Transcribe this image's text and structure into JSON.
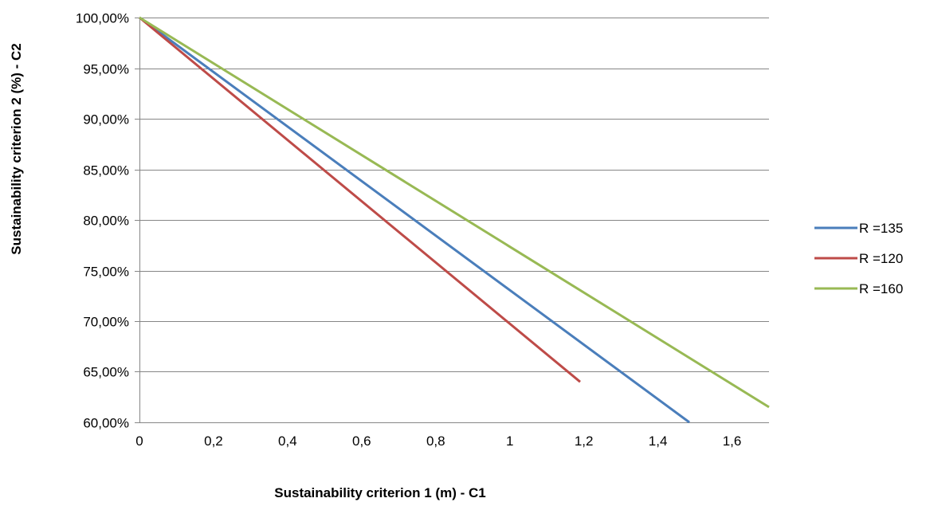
{
  "chart_data": {
    "type": "line",
    "xlabel": "Sustainability criterion 1 (m) - C1",
    "ylabel": "Sustainability criterion 2 (%) - C2",
    "xlim": [
      0,
      1.7
    ],
    "ylim": [
      0.6,
      1.0
    ],
    "x_ticks": [
      0,
      0.2,
      0.4,
      0.6,
      0.8,
      1,
      1.2,
      1.4,
      1.6
    ],
    "x_tick_labels": [
      "0",
      "0,2",
      "0,4",
      "0,6",
      "0,8",
      "1",
      "1,2",
      "1,4",
      "1,6"
    ],
    "y_ticks": [
      1.0,
      0.95,
      0.9,
      0.85,
      0.8,
      0.75,
      0.7,
      0.65,
      0.6
    ],
    "y_tick_labels": [
      "100,00%",
      "95,00%",
      "90,00%",
      "85,00%",
      "80,00%",
      "75,00%",
      "70,00%",
      "65,00%",
      "60,00%"
    ],
    "grid": "horizontal",
    "legend_position": "right",
    "series": [
      {
        "name": "R =135",
        "color": "#4a7ebb",
        "x": [
          0,
          1.485
        ],
        "y": [
          1.0,
          0.6
        ]
      },
      {
        "name": "R =120",
        "color": "#be4b48",
        "x": [
          0,
          1.19
        ],
        "y": [
          1.0,
          0.64
        ]
      },
      {
        "name": "R =160",
        "color": "#98b954",
        "x": [
          0,
          1.7
        ],
        "y": [
          1.0,
          0.615
        ]
      }
    ]
  }
}
